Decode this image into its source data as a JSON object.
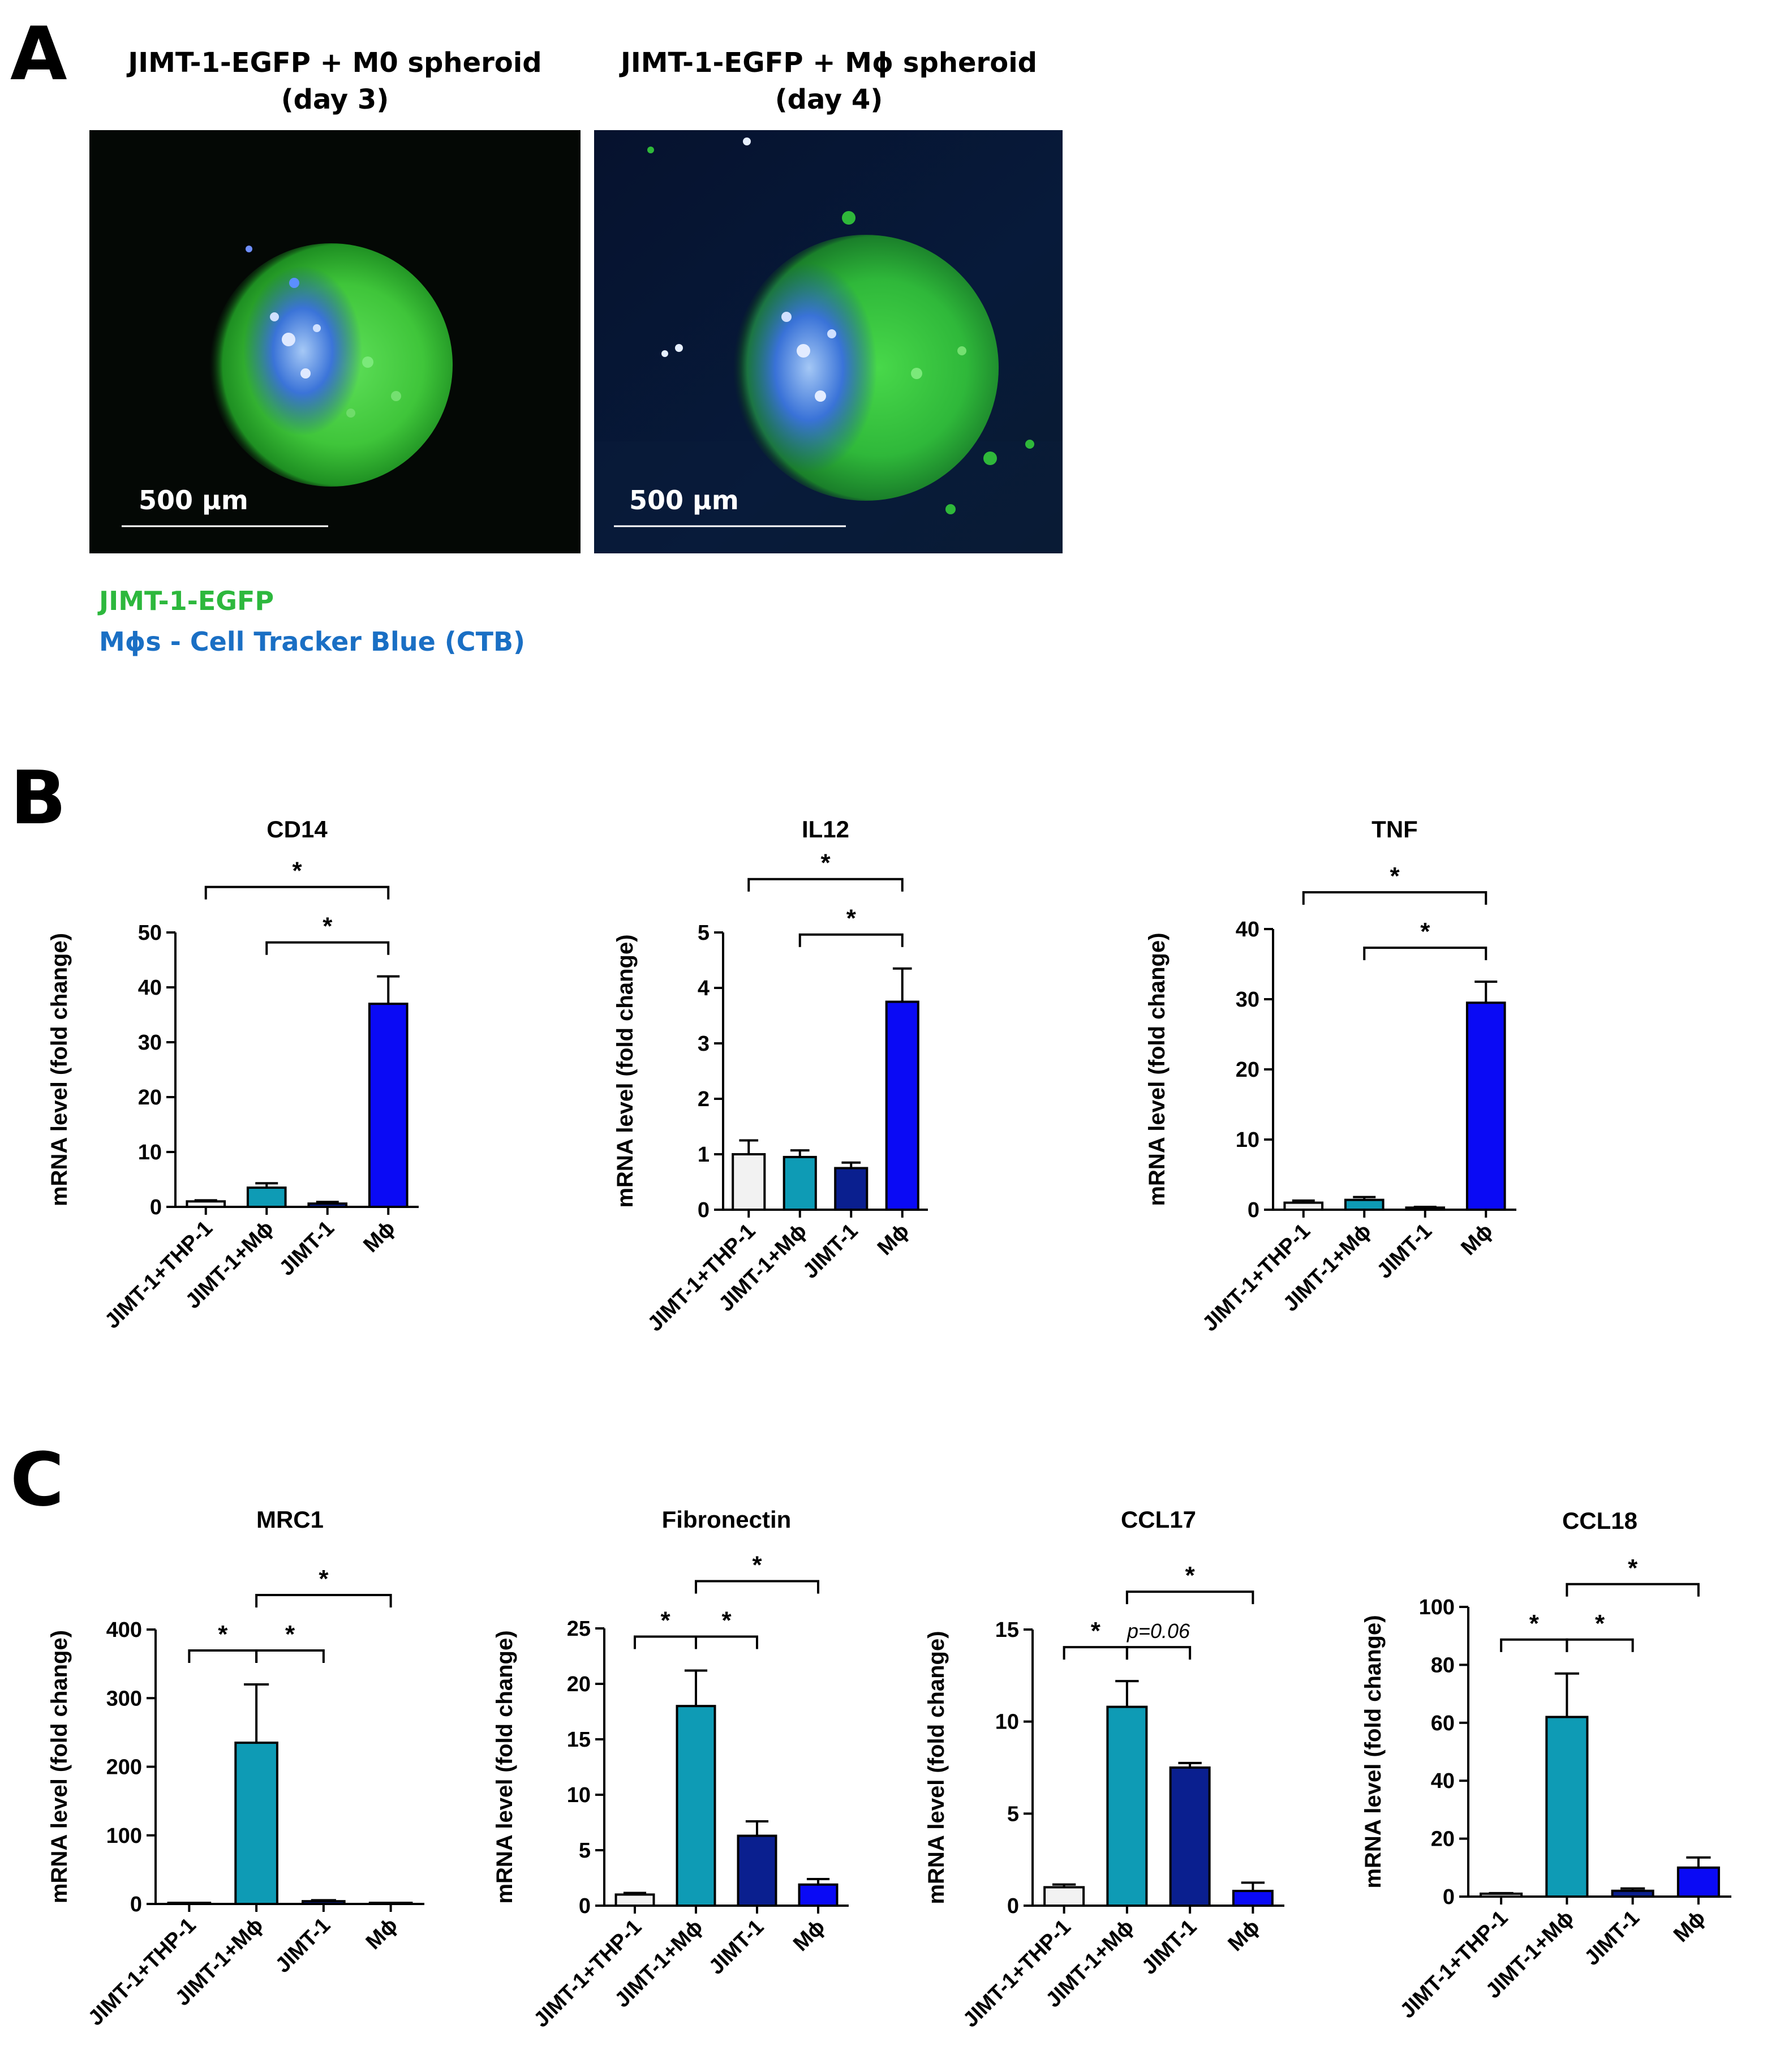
{
  "panels": {
    "a": "A",
    "b": "B",
    "c": "C"
  },
  "micrographs": [
    {
      "title_line1": "JIMT-1-EGFP + M0 spheroid",
      "title_line2": "(day 3)",
      "scale_bar": "500 µm"
    },
    {
      "title_line1": "JIMT-1-EGFP + Mϕ spheroid",
      "title_line2": "(day 4)",
      "scale_bar": "500 µm"
    }
  ],
  "legend": {
    "green_label": "JIMT-1-EGFP",
    "blue_label": "Mϕs - Cell Tracker Blue (CTB)",
    "green_color": "#2db83d",
    "blue_color": "#1a6fc4"
  },
  "colors": {
    "JIMT-1+THP-1": "#f2f2f2",
    "JIMT-1+Mϕ": "#0e9bb5",
    "JIMT-1": "#0a1f8f",
    "Mϕ": "#0a0af5"
  },
  "chart_data": [
    {
      "type": "bar",
      "title": "CD14",
      "ylabel": "mRNA level (fold change)",
      "categories": [
        "JIMT-1+THP-1",
        "JIMT-1+Mϕ",
        "JIMT-1",
        "Mϕ"
      ],
      "values": [
        1,
        3.5,
        0.6,
        37
      ],
      "errors": [
        0.2,
        0.8,
        0.3,
        5
      ],
      "ylim": [
        0,
        50
      ],
      "yticks": [
        0,
        10,
        20,
        30,
        40,
        50
      ],
      "annotations": [
        {
          "from": "JIMT-1+THP-1",
          "to": "Mϕ",
          "text": "*"
        },
        {
          "from": "JIMT-1+Mϕ",
          "to": "Mϕ",
          "text": "*"
        }
      ]
    },
    {
      "type": "bar",
      "title": "IL12",
      "ylabel": "mRNA level (fold change)",
      "categories": [
        "JIMT-1+THP-1",
        "JIMT-1+Mϕ",
        "JIMT-1",
        "Mϕ"
      ],
      "values": [
        1,
        0.95,
        0.75,
        3.75
      ],
      "errors": [
        0.25,
        0.12,
        0.1,
        0.6
      ],
      "ylim": [
        0,
        5
      ],
      "yticks": [
        0,
        1,
        2,
        3,
        4,
        5
      ],
      "annotations": [
        {
          "from": "JIMT-1+THP-1",
          "to": "Mϕ",
          "text": "*"
        },
        {
          "from": "JIMT-1+Mϕ",
          "to": "Mϕ",
          "text": "*"
        }
      ]
    },
    {
      "type": "bar",
      "title": "TNF",
      "ylabel": "mRNA level (fold change)",
      "categories": [
        "JIMT-1+THP-1",
        "JIMT-1+Mϕ",
        "JIMT-1",
        "Mϕ"
      ],
      "values": [
        1,
        1.4,
        0.3,
        29.5
      ],
      "errors": [
        0.3,
        0.4,
        0.1,
        3
      ],
      "ylim": [
        0,
        40
      ],
      "yticks": [
        0,
        10,
        20,
        30,
        40
      ],
      "annotations": [
        {
          "from": "JIMT-1+THP-1",
          "to": "Mϕ",
          "text": "*"
        },
        {
          "from": "JIMT-1+Mϕ",
          "to": "Mϕ",
          "text": "*"
        }
      ]
    },
    {
      "type": "bar",
      "title": "MRC1",
      "ylabel": "mRNA level (fold change)",
      "categories": [
        "JIMT-1+THP-1",
        "JIMT-1+Mϕ",
        "JIMT-1",
        "Mϕ"
      ],
      "values": [
        0.5,
        235,
        4,
        1
      ],
      "errors": [
        0.2,
        85,
        1.5,
        0.5
      ],
      "ylim": [
        0,
        400
      ],
      "yticks": [
        0,
        100,
        200,
        300,
        400
      ],
      "annotations": [
        {
          "from": "JIMT-1+THP-1",
          "to": "JIMT-1+Mϕ",
          "text": "*"
        },
        {
          "from": "JIMT-1+Mϕ",
          "to": "JIMT-1",
          "text": "*"
        },
        {
          "from": "JIMT-1+Mϕ",
          "to": "Mϕ",
          "text": "*"
        }
      ]
    },
    {
      "type": "bar",
      "title": "Fibronectin",
      "ylabel": "mRNA level (fold change)",
      "categories": [
        "JIMT-1+THP-1",
        "JIMT-1+Mϕ",
        "JIMT-1",
        "Mϕ"
      ],
      "values": [
        1,
        18,
        6.3,
        1.9
      ],
      "errors": [
        0.15,
        3.2,
        1.3,
        0.5
      ],
      "ylim": [
        0,
        25
      ],
      "yticks": [
        0,
        5,
        10,
        15,
        20,
        25
      ],
      "annotations": [
        {
          "from": "JIMT-1+THP-1",
          "to": "JIMT-1+Mϕ",
          "text": "*"
        },
        {
          "from": "JIMT-1+Mϕ",
          "to": "JIMT-1",
          "text": "*"
        },
        {
          "from": "JIMT-1+Mϕ",
          "to": "Mϕ",
          "text": "*"
        }
      ]
    },
    {
      "type": "bar",
      "title": "CCL17",
      "ylabel": "mRNA level (fold change)",
      "categories": [
        "JIMT-1+THP-1",
        "JIMT-1+Mϕ",
        "JIMT-1",
        "Mϕ"
      ],
      "values": [
        1,
        10.8,
        7.5,
        0.8
      ],
      "errors": [
        0.15,
        1.4,
        0.25,
        0.45
      ],
      "ylim": [
        0,
        15
      ],
      "yticks": [
        0,
        5,
        10,
        15
      ],
      "annotations": [
        {
          "from": "JIMT-1+THP-1",
          "to": "JIMT-1+Mϕ",
          "text": "*"
        },
        {
          "from": "JIMT-1+Mϕ",
          "to": "JIMT-1",
          "text": "p=0.06"
        },
        {
          "from": "JIMT-1+Mϕ",
          "to": "Mϕ",
          "text": "*"
        }
      ]
    },
    {
      "type": "bar",
      "title": "CCL18",
      "ylabel": "mRNA level (fold change)",
      "categories": [
        "JIMT-1+THP-1",
        "JIMT-1+Mϕ",
        "JIMT-1",
        "Mϕ"
      ],
      "values": [
        1,
        62,
        2,
        10
      ],
      "errors": [
        0.2,
        15,
        0.8,
        3.5
      ],
      "ylim": [
        0,
        100
      ],
      "yticks": [
        0,
        20,
        40,
        60,
        80,
        100
      ],
      "annotations": [
        {
          "from": "JIMT-1+THP-1",
          "to": "JIMT-1+Mϕ",
          "text": "*"
        },
        {
          "from": "JIMT-1+Mϕ",
          "to": "JIMT-1",
          "text": "*"
        },
        {
          "from": "JIMT-1+Mϕ",
          "to": "Mϕ",
          "text": "*"
        }
      ]
    }
  ]
}
